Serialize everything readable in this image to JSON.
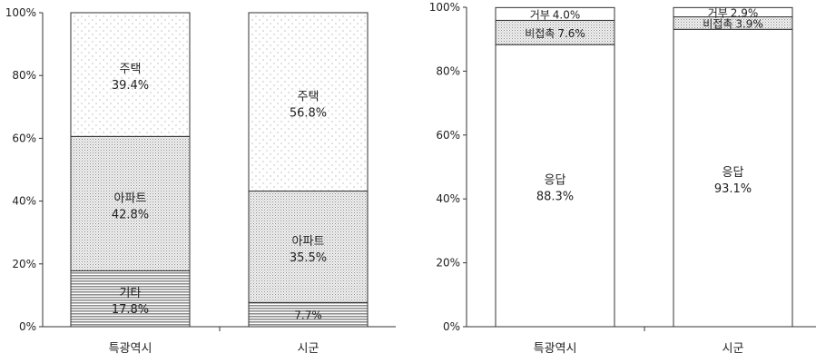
{
  "chart_data": [
    {
      "type": "bar",
      "stacked": true,
      "categories": [
        "특광역시",
        "시군"
      ],
      "ylim": [
        0,
        100
      ],
      "yticks": [
        "0%",
        "20%",
        "40%",
        "60%",
        "80%",
        "100%"
      ],
      "series": [
        {
          "name": "기타",
          "values": [
            17.8,
            7.7
          ],
          "labels": [
            "17.8%",
            "7.7%"
          ],
          "pattern": "hstripe"
        },
        {
          "name": "아파트",
          "values": [
            42.8,
            35.5
          ],
          "labels": [
            "42.8%",
            "35.5%"
          ],
          "pattern": "dense-dots"
        },
        {
          "name": "주택",
          "values": [
            39.4,
            56.8
          ],
          "labels": [
            "39.4%",
            "56.8%"
          ],
          "pattern": "sparse-dots"
        }
      ],
      "segment_names": [
        [
          "기타",
          ""
        ],
        [
          "아파트",
          "아파트"
        ],
        [
          "주택",
          "주택"
        ]
      ]
    },
    {
      "type": "bar",
      "stacked": true,
      "categories": [
        "특광역시",
        "시군"
      ],
      "ylim": [
        0,
        100
      ],
      "yticks": [
        "0%",
        "20%",
        "40%",
        "60%",
        "80%",
        "100%"
      ],
      "series": [
        {
          "name": "응답",
          "values": [
            88.3,
            93.1
          ],
          "labels": [
            "88.3%",
            "93.1%"
          ],
          "pattern": "none"
        },
        {
          "name": "비접촉",
          "values": [
            7.6,
            3.9
          ],
          "labels": [
            "7.6%",
            "3.9%"
          ],
          "pattern": "dense-dots"
        },
        {
          "name": "거부",
          "values": [
            4.0,
            2.9
          ],
          "labels": [
            "4.0%",
            "2.9%"
          ],
          "pattern": "none"
        }
      ]
    }
  ]
}
